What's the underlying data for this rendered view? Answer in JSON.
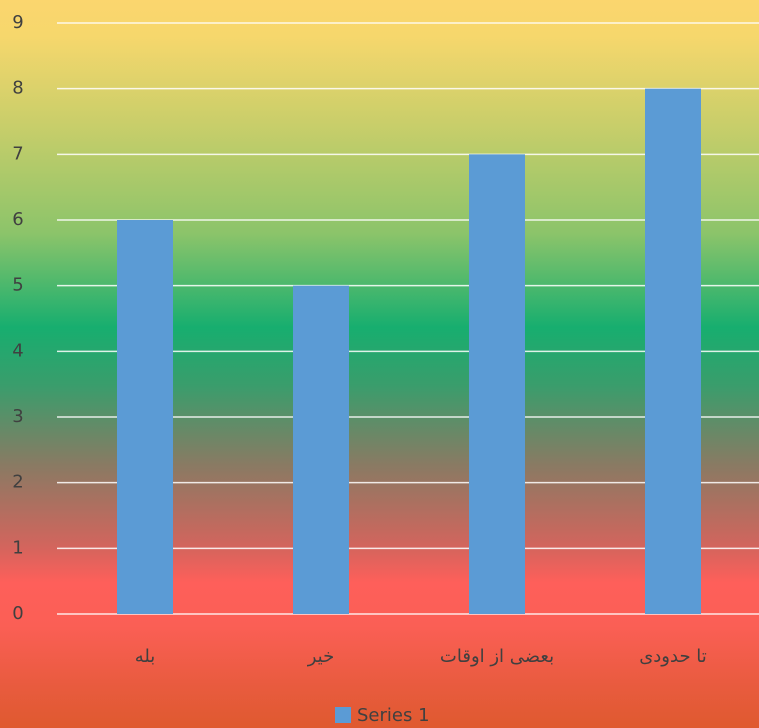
{
  "chart_data": {
    "type": "bar",
    "categories": [
      "بله",
      "خیر",
      "بعضی از اوقات",
      "تا حدودی"
    ],
    "series": [
      {
        "name": "Series 1",
        "color": "#5b9bd5",
        "values": [
          6,
          5,
          7,
          8
        ]
      }
    ],
    "ylim": [
      0,
      9
    ],
    "yticks": [
      0,
      1,
      2,
      3,
      4,
      5,
      6,
      7,
      8,
      9
    ],
    "grid": true,
    "legend": "bottom"
  }
}
